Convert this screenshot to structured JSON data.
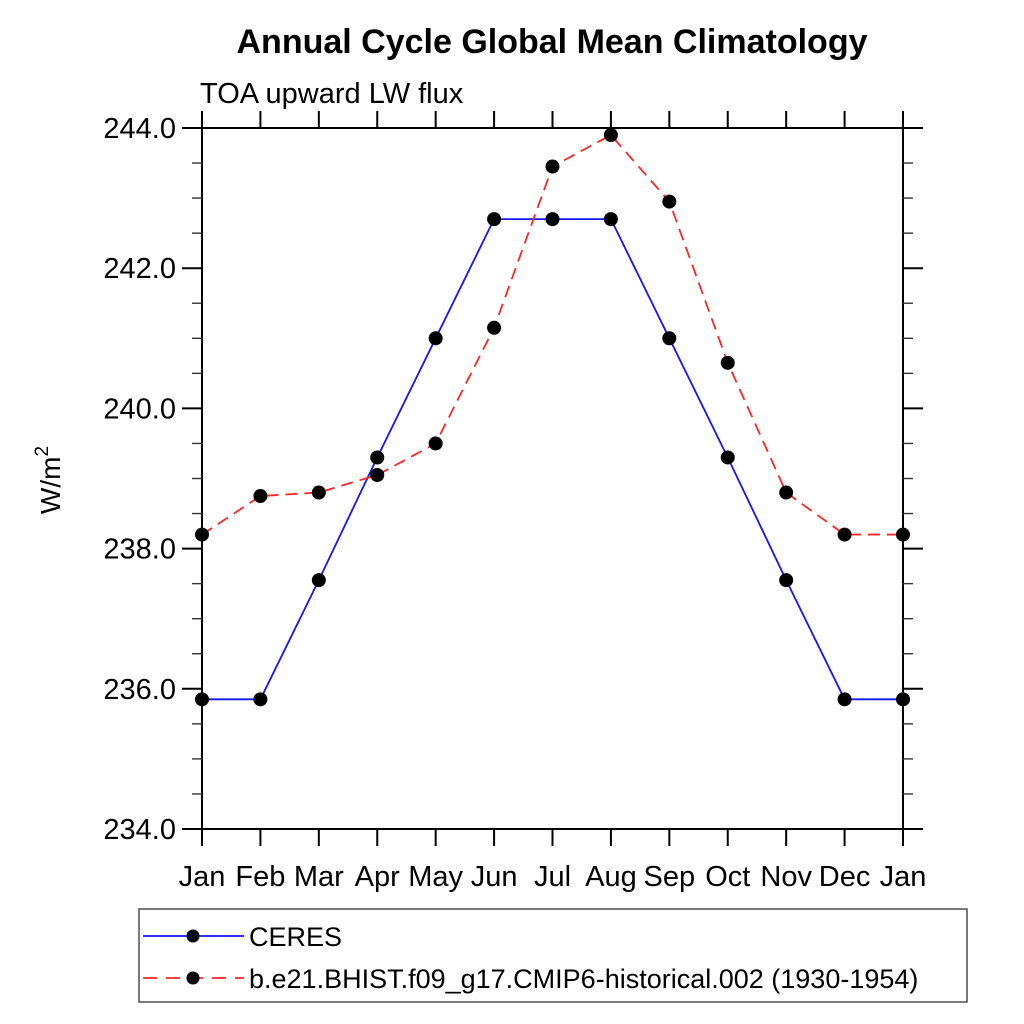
{
  "chart_data": {
    "type": "line",
    "title": "Annual Cycle Global Mean Climatology",
    "subtitle": "TOA upward LW flux",
    "ylabel": {
      "base": "W/m",
      "exponent": "2"
    },
    "categories": [
      "Jan",
      "Feb",
      "Mar",
      "Apr",
      "May",
      "Jun",
      "Jul",
      "Aug",
      "Sep",
      "Oct",
      "Nov",
      "Dec",
      "Jan"
    ],
    "series": [
      {
        "name": "CERES",
        "color": "#1414ff",
        "line_style": "solid",
        "marker": "filled-circle",
        "marker_color": "#000000",
        "values": [
          235.85,
          235.85,
          237.55,
          239.3,
          241.0,
          242.7,
          242.7,
          242.7,
          241.0,
          239.3,
          237.55,
          235.85,
          235.85
        ]
      },
      {
        "name": "b.e21.BHIST.f09_g17.CMIP6-historical.002 (1930-1954)",
        "color": "#ff2424",
        "line_style": "dashed",
        "marker": "filled-circle",
        "marker_color": "#000000",
        "values": [
          238.2,
          238.75,
          238.8,
          239.05,
          239.5,
          241.15,
          243.45,
          243.9,
          242.95,
          240.65,
          238.8,
          238.2,
          238.2
        ]
      }
    ],
    "ylim": [
      234.0,
      244.0
    ],
    "ytick_major_step": 2.0,
    "ytick_minor_step": 0.5,
    "ytick_labels": [
      "234.0",
      "236.0",
      "238.0",
      "240.0",
      "242.0",
      "244.0"
    ],
    "grid": false,
    "legend_position": "bottom-left"
  }
}
